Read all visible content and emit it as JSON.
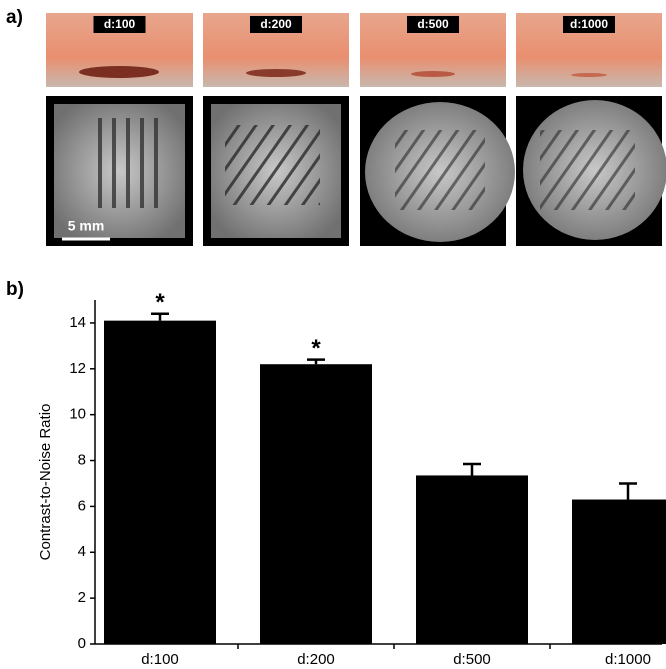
{
  "panel_labels": [
    "a)",
    "b)"
  ],
  "images": {
    "labels": [
      "d:100",
      "d:200",
      "d:500",
      "d:1000"
    ],
    "scale_bar": "5 mm"
  },
  "chart_data": {
    "type": "bar",
    "categories": [
      "d:100",
      "d:200",
      "d:500",
      "d:1000"
    ],
    "values": [
      14.1,
      12.2,
      7.35,
      6.3
    ],
    "errors": [
      0.3,
      0.2,
      0.5,
      0.7
    ],
    "annotations": [
      "*",
      "*",
      null,
      null
    ],
    "y_label": "Contrast-to-Noise Ratio",
    "color": "#000000",
    "ylim": [
      0,
      15
    ],
    "yticks": [
      0,
      2,
      4,
      6,
      8,
      10,
      12,
      14
    ],
    "grid": false
  }
}
